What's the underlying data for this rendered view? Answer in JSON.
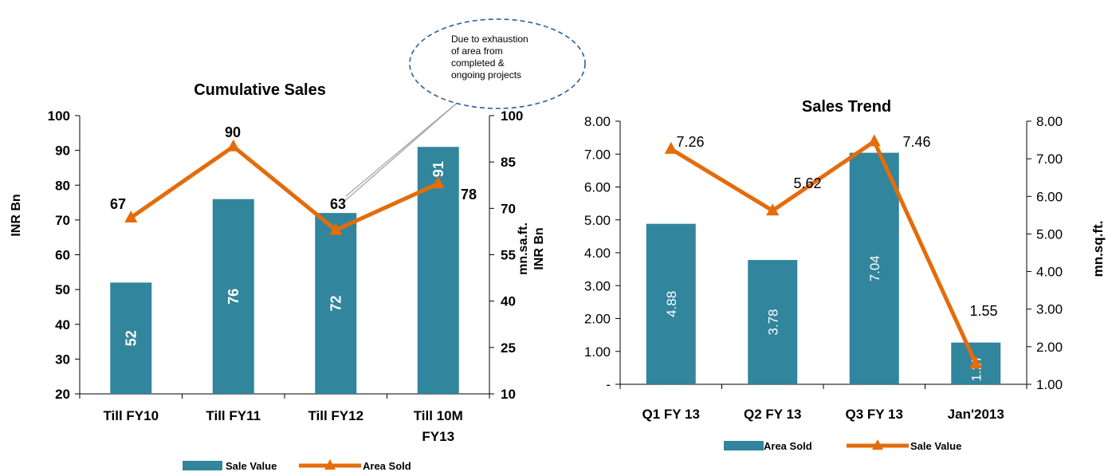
{
  "colors": {
    "bar": "#31859c",
    "line": "#e46c0a",
    "axis": "#000000",
    "callout": "#2e5fa3"
  },
  "chart_data": [
    {
      "type": "bar",
      "title": "Cumulative Sales",
      "categories": [
        "Till FY10",
        "Till FY11",
        "Till FY12",
        "Till 10M FY13"
      ],
      "ylabel": "INR Bn",
      "y2label": "mn.sa.ft.",
      "ylim": [
        20,
        100
      ],
      "y2lim": [
        10,
        100
      ],
      "yticks": [
        "20",
        "30",
        "40",
        "50",
        "60",
        "70",
        "80",
        "90",
        "100"
      ],
      "y2ticks": [
        "10",
        "25",
        "40",
        "55",
        "70",
        "85",
        "100"
      ],
      "series": [
        {
          "name": "Sale Value",
          "kind": "bar",
          "axis": "left",
          "values": [
            52,
            76,
            72,
            91
          ],
          "labels": [
            "52",
            "76",
            "72",
            "91"
          ]
        },
        {
          "name": "Area Sold",
          "kind": "line",
          "axis": "right",
          "values": [
            67,
            90,
            63,
            78
          ],
          "labels": [
            "67",
            "90",
            "63",
            "78"
          ]
        }
      ],
      "legend": "bottom",
      "annotation": "Due to exhaustion of area from completed & ongoing projects"
    },
    {
      "type": "bar",
      "title": "Sales Trend",
      "categories": [
        "Q1 FY 13",
        "Q2 FY 13",
        "Q3 FY 13",
        "Jan'2013"
      ],
      "ylabel": "INR Bn",
      "y2label": "mn.sq.ft.",
      "ylim": [
        0,
        8
      ],
      "y2lim": [
        1,
        8
      ],
      "yticks": [
        "-",
        "1.00",
        "2.00",
        "3.00",
        "4.00",
        "5.00",
        "6.00",
        "7.00",
        "8.00"
      ],
      "y2ticks": [
        "1.00",
        "2.00",
        "3.00",
        "4.00",
        "5.00",
        "6.00",
        "7.00",
        "8.00"
      ],
      "series": [
        {
          "name": "Area Sold",
          "kind": "bar",
          "axis": "right",
          "values": [
            4.88,
            3.78,
            7.04,
            1.27
          ],
          "labels": [
            "4.88",
            "3.78",
            "7.04",
            "1.27"
          ]
        },
        {
          "name": "Sale Value",
          "kind": "line",
          "axis": "left",
          "values": [
            7.26,
            5.62,
            7.46,
            1.55
          ],
          "labels": [
            "7.26",
            "5.62",
            "7.46",
            "1.55"
          ]
        }
      ],
      "legend": "bottom"
    }
  ]
}
